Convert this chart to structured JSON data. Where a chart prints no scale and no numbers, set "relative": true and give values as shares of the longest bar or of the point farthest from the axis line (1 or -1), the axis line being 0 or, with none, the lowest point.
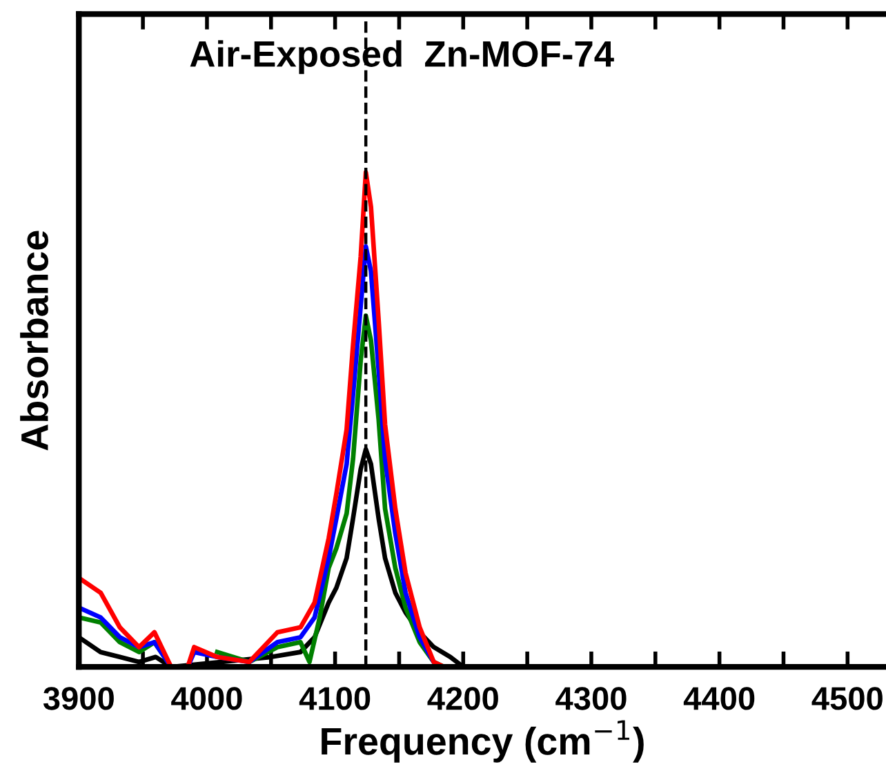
{
  "chart_data": {
    "type": "line",
    "title": "Air-Exposed  Zn-MOF-74",
    "xlabel": "Frequency (cm$^{−1}$)",
    "ylabel": "Absorbance",
    "relative": true,
    "xlim": [
      3900,
      4530
    ],
    "xticks": [
      3900,
      {
        "value": 3950,
        "label": null
      },
      4000,
      {
        "value": 4050,
        "label": null
      },
      4100,
      {
        "value": 4150,
        "label": null
      },
      4200,
      {
        "value": 4250,
        "label": null
      },
      4300,
      {
        "value": 4350,
        "label": null
      },
      4400,
      {
        "value": 4450,
        "label": null
      },
      4500
    ],
    "tick_labels": "x",
    "grid": false,
    "legend": false,
    "marker": "none",
    "line_style": "solid",
    "ref_lines": [
      {
        "axis": "x",
        "value": 4124,
        "color": "#000000",
        "line_style": "dashed"
      }
    ],
    "series": [
      {
        "color": "#000000",
        "x": [
          3900,
          3917,
          3932,
          3947,
          3960,
          3972,
          4050,
          4073,
          4084,
          4095,
          4101,
          4109,
          4114,
          4120,
          4124,
          4128,
          4134,
          4139,
          4147,
          4155,
          4166,
          4177,
          4190,
          4200
        ],
        "values": [
          0.06,
          0.03,
          0.02,
          0.01,
          0.02,
          0,
          0.02,
          0.03,
          0.06,
          0.13,
          0.16,
          0.22,
          0.3,
          0.4,
          0.44,
          0.41,
          0.3,
          0.22,
          0.15,
          0.11,
          0.07,
          0.04,
          0.02,
          0
        ]
      },
      {
        "color": "#008000",
        "x": [
          3900,
          3917,
          3932,
          3947,
          3959,
          3972,
          3985,
          3990,
          4008,
          4033,
          4055,
          4073,
          4080,
          4088,
          4095,
          4101,
          4109,
          4114,
          4120,
          4124,
          4128,
          4134,
          4139,
          4147,
          4155,
          4166,
          4177,
          4185
        ],
        "values": [
          0.1,
          0.09,
          0.05,
          0.03,
          0.05,
          0,
          0,
          null,
          0.03,
          0.01,
          0.04,
          0.05,
          0.01,
          0.1,
          0.2,
          0.24,
          0.31,
          0.42,
          0.62,
          0.71,
          0.66,
          0.5,
          0.32,
          0.2,
          0.12,
          0.05,
          0.01,
          0
        ]
      },
      {
        "color": "#0000ff",
        "x": [
          3900,
          3917,
          3932,
          3947,
          3959,
          3972,
          3985,
          3990,
          4008,
          4033,
          4055,
          4073,
          4084,
          4095,
          4101,
          4109,
          4114,
          4120,
          4124,
          4128,
          4134,
          4139,
          4147,
          4155,
          4166,
          4177,
          4182
        ],
        "values": [
          0.12,
          0.1,
          0.06,
          0.04,
          0.05,
          0,
          0,
          0.03,
          0.02,
          0.01,
          0.05,
          0.06,
          0.1,
          0.22,
          0.3,
          0.41,
          0.55,
          0.73,
          0.85,
          0.8,
          0.6,
          0.42,
          0.27,
          0.15,
          0.06,
          0.01,
          0
        ]
      },
      {
        "color": "#ff0000",
        "x": [
          3900,
          3917,
          3932,
          3947,
          3959,
          3972,
          3985,
          3990,
          4008,
          4033,
          4055,
          4073,
          4084,
          4095,
          4101,
          4109,
          4114,
          4120,
          4124,
          4128,
          4134,
          4139,
          4147,
          4155,
          4166,
          4177,
          4185
        ],
        "values": [
          0.18,
          0.15,
          0.08,
          0.04,
          0.07,
          0,
          0,
          0.04,
          0.02,
          0.01,
          0.07,
          0.08,
          0.13,
          0.26,
          0.35,
          0.48,
          0.65,
          0.83,
          1.0,
          0.93,
          0.7,
          0.49,
          0.32,
          0.19,
          0.08,
          0.01,
          0
        ]
      }
    ]
  }
}
